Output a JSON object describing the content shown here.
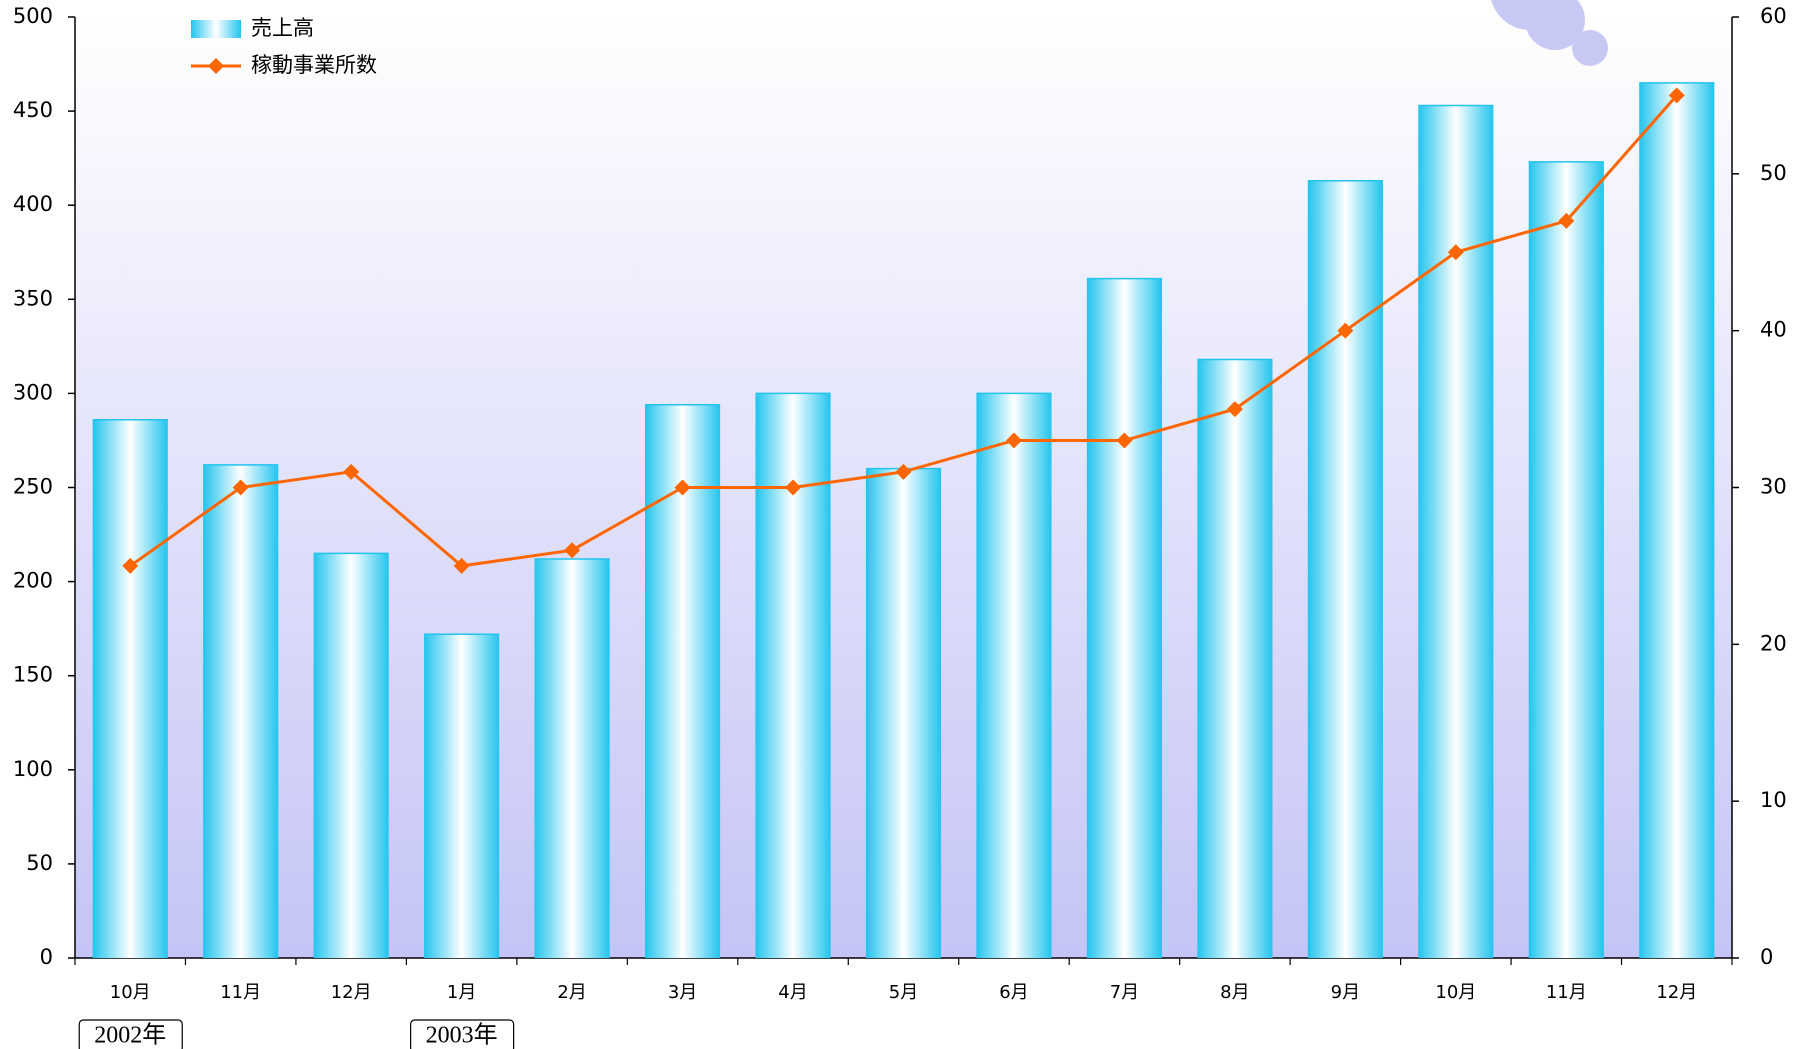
{
  "chart_data": {
    "type": "bar_line",
    "categories": [
      "10月",
      "11月",
      "12月",
      "1月",
      "2月",
      "3月",
      "4月",
      "5月",
      "6月",
      "7月",
      "8月",
      "9月",
      "10月",
      "11月",
      "12月"
    ],
    "year_groups": [
      {
        "label": "2002年",
        "start": 0
      },
      {
        "label": "2003年",
        "start": 3
      }
    ],
    "series": [
      {
        "name": "売上高",
        "type": "bar",
        "color": "#22c4ee",
        "values": [
          286,
          262,
          215,
          172,
          212,
          294,
          300,
          260,
          300,
          361,
          318,
          413,
          453,
          423,
          465
        ]
      },
      {
        "name": "稼動事業所数",
        "type": "line",
        "axis": "y2",
        "color": "#ff6600",
        "values": [
          25,
          30,
          31,
          25,
          26,
          30,
          30,
          31,
          33,
          33,
          35,
          40,
          45,
          47,
          55
        ]
      }
    ],
    "ylim": [
      0,
      500
    ],
    "yticks": [
      0,
      50,
      100,
      150,
      200,
      250,
      300,
      350,
      400,
      450,
      500
    ],
    "y2lim": [
      0,
      60
    ],
    "y2ticks": [
      0,
      10,
      20,
      30,
      40,
      50,
      60
    ],
    "grid": false,
    "legend": "upper left"
  }
}
